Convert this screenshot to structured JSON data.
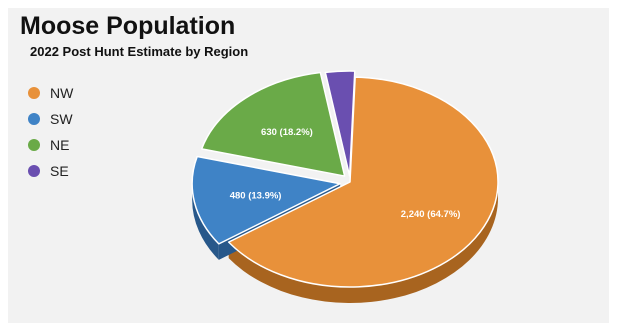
{
  "chart_data": {
    "type": "pie",
    "title": "Moose Population",
    "subtitle": "2022 Post Hunt Estimate by Region",
    "legend_position": "top-left",
    "slices": [
      {
        "label": "NW",
        "value": 2240,
        "percent": 64.7,
        "data_label": "2,240 (64.7%)",
        "color": "#e8913a",
        "side_color": "#a8641f"
      },
      {
        "label": "SW",
        "value": 480,
        "percent": 13.9,
        "data_label": "480 (13.9%)",
        "color": "#3f83c6",
        "side_color": "#28588a"
      },
      {
        "label": "NE",
        "value": 630,
        "percent": 18.2,
        "data_label": "630 (18.2%)",
        "color": "#6aaa48",
        "side_color": "#467530"
      },
      {
        "label": "SE",
        "value": 110,
        "percent": 3.2,
        "data_label": "",
        "color": "#6a4fb0",
        "side_color": "#46327a"
      }
    ]
  }
}
